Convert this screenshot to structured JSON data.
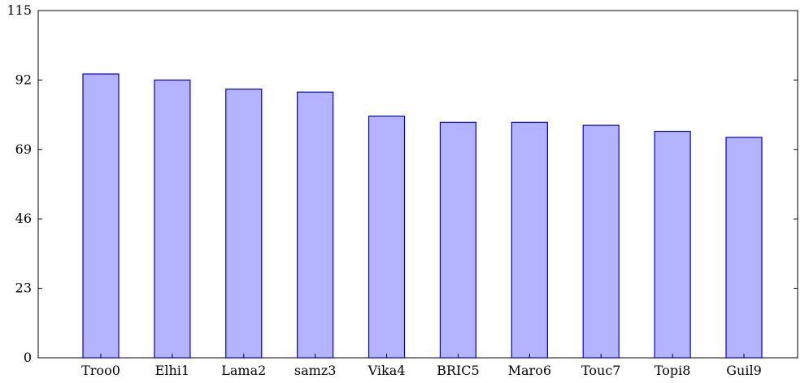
{
  "chart_data": {
    "type": "bar",
    "categories": [
      "Troo0",
      "Elhi1",
      "Lama2",
      "samz3",
      "Vika4",
      "BRIC5",
      "Maro6",
      "Touc7",
      "Topi8",
      "Guil9"
    ],
    "values": [
      94,
      92,
      89,
      88,
      80,
      78,
      78,
      77,
      75,
      73
    ],
    "ylim": [
      0,
      115
    ],
    "yticks": [
      0,
      23,
      46,
      69,
      92,
      115
    ],
    "grid": false,
    "colors": {
      "bar_fill": "#b3b3ff",
      "bar_stroke": "#0000d9"
    }
  }
}
